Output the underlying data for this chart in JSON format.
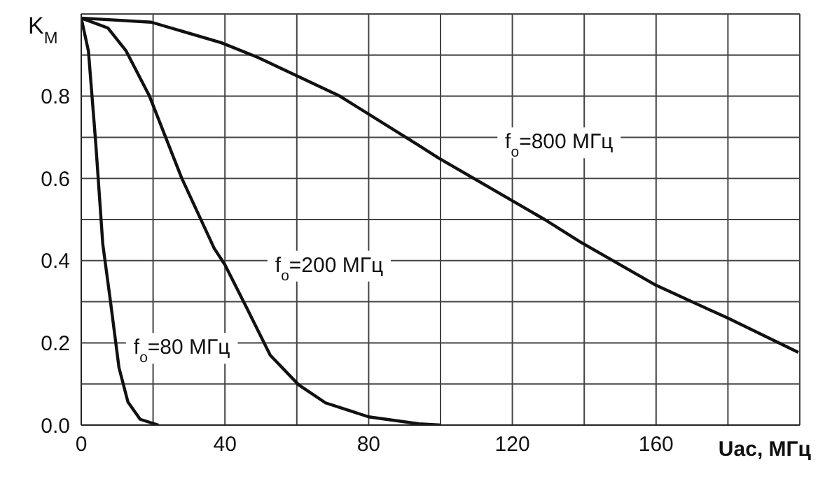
{
  "chart_data": {
    "type": "line",
    "xlabel": "Uac, МГц",
    "ylabel": "K$_{М}$",
    "xlim": [
      0,
      200
    ],
    "ylim": [
      0,
      1
    ],
    "xticks": [
      0,
      {
        "value": 20,
        "label": null
      },
      40,
      {
        "value": 60,
        "label": null
      },
      80,
      {
        "value": 100,
        "label": null
      },
      120,
      {
        "value": 140,
        "label": null
      },
      160,
      {
        "value": 180,
        "label": null
      },
      {
        "value": 200,
        "label": null
      }
    ],
    "yticks": [
      {
        "value": 0,
        "label": "0.0"
      },
      {
        "value": 0.1,
        "label": null
      },
      0.2,
      {
        "value": 0.3,
        "label": null
      },
      0.4,
      {
        "value": 0.5,
        "label": null
      },
      0.6,
      {
        "value": 0.7,
        "label": null
      },
      0.8,
      {
        "value": 0.9,
        "label": null
      },
      {
        "value": 1,
        "label": null
      }
    ],
    "grid": true,
    "legend": false,
    "marker": "none",
    "line_style": "solid",
    "series": [
      {
        "name": "f$_{o}$=800 МГц",
        "color": "#111111",
        "x": [
          0,
          19.5,
          39,
          49,
          72,
          94,
          99.4,
          129,
          139,
          160,
          180,
          199.6
        ],
        "values": [
          0.99,
          0.98,
          0.93,
          0.895,
          0.8,
          0.68,
          0.65,
          0.5,
          0.445,
          0.34,
          0.26,
          0.177
        ]
      },
      {
        "name": "f$_{o}$=200 МГц",
        "color": "#111111",
        "x": [
          0,
          7.4,
          12.5,
          19,
          28,
          37,
          40,
          46,
          52.6,
          60.5,
          68,
          80,
          94,
          100
        ],
        "values": [
          0.99,
          0.966,
          0.91,
          0.8,
          0.6,
          0.43,
          0.39,
          0.286,
          0.17,
          0.098,
          0.054,
          0.02,
          0.003,
          0
        ]
      },
      {
        "name": "f$_{o}$=80 МГц",
        "color": "#111111",
        "x": [
          0,
          2,
          4,
          6,
          8,
          10.5,
          13,
          16.4,
          21.5
        ],
        "values": [
          0.99,
          0.91,
          0.69,
          0.44,
          0.31,
          0.14,
          0.056,
          0.014,
          0
        ]
      }
    ]
  }
}
